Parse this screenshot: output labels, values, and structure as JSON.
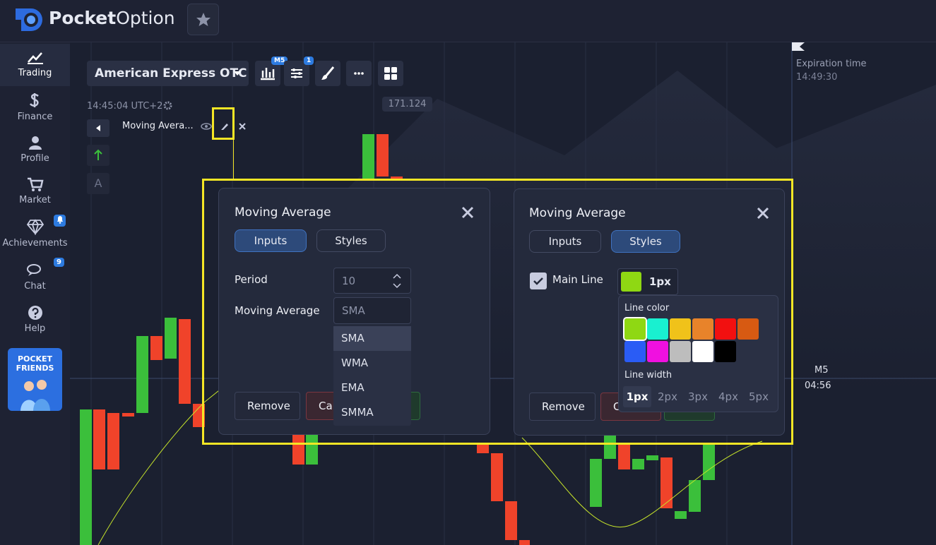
{
  "header": {
    "brand_bold": "Pocket",
    "brand_light": "Option"
  },
  "sidebar": {
    "items": [
      {
        "label": "Trading"
      },
      {
        "label": "Finance"
      },
      {
        "label": "Profile"
      },
      {
        "label": "Market"
      },
      {
        "label": "Achievements"
      },
      {
        "label": "Chat",
        "badge": "9"
      },
      {
        "label": "Help"
      }
    ],
    "promo": "POCKET FRIENDS"
  },
  "toolbar": {
    "asset": "American Express OTC",
    "timeframe_badge": "M5",
    "indicators_badge": "1"
  },
  "chart": {
    "clock": "14:45:04 UTC+2",
    "price_label": "171.124",
    "indicator_label": "Moving Avera...",
    "drawing_tool": "A",
    "expiration_label": "Expiration time",
    "expiration_time": "14:49:30",
    "timeframe": "M5",
    "countdown": "04:56"
  },
  "inputs_dialog": {
    "title": "Moving Average",
    "tabs": [
      "Inputs",
      "Styles"
    ],
    "fields": [
      {
        "label": "Period",
        "value": "10"
      },
      {
        "label": "Moving Average",
        "value": "SMA"
      }
    ],
    "options": [
      "SMA",
      "WMA",
      "EMA",
      "SMMA"
    ],
    "buttons": [
      "Remove",
      "Cancel"
    ]
  },
  "styles_dialog": {
    "title": "Moving Average",
    "tabs": [
      "Inputs",
      "Styles"
    ],
    "main_line_label": "Main Line",
    "line_width_value": "1px",
    "line_color_label": "Line color",
    "line_width_label": "Line width",
    "widths": [
      "1px",
      "2px",
      "3px",
      "4px",
      "5px"
    ],
    "buttons": [
      "Remove",
      "Cancel"
    ]
  }
}
